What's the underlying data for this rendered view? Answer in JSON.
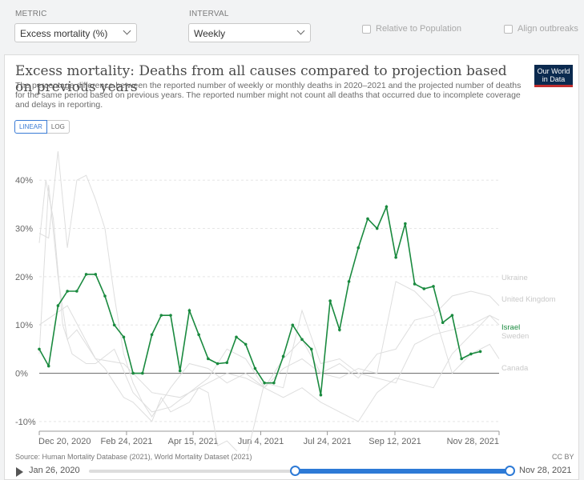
{
  "controls": {
    "metric_label": "METRIC",
    "metric_value": "Excess mortality (%)",
    "interval_label": "INTERVAL",
    "interval_value": "Weekly",
    "relative_label": "Relative to Population",
    "align_label": "Align outbreaks"
  },
  "header": {
    "title": "Excess mortality: Deaths from all causes compared to projection based on previous years",
    "subtitle": "The percentage difference between the reported number of weekly or monthly deaths in 2020–2021 and the projected number of deaths for the same period based on previous years. The reported number might not count all deaths that occurred due to incomplete coverage and delays in reporting.",
    "logo_line1": "Our World",
    "logo_line2": "in Data",
    "scale_linear": "LINEAR",
    "scale_log": "LOG"
  },
  "footer": {
    "source": "Source: Human Mortality Database (2021), World Mortality Dataset (2021)",
    "license": "CC BY",
    "timeline_start": "Jan 26, 2020",
    "timeline_end": "Nov 28, 2021"
  },
  "colors": {
    "highlight": "#1a8a3f",
    "background_series": "#dedede",
    "axis": "#666666",
    "grid": "#e5e5e5"
  },
  "chart_data": {
    "type": "line",
    "ylim": [
      -12,
      46
    ],
    "y_ticks": [
      -10,
      0,
      10,
      20,
      30,
      40
    ],
    "y_tick_labels": [
      "-10%",
      "0%",
      "10%",
      "20%",
      "30%",
      "40%"
    ],
    "x_tick_labels": [
      "Dec 20, 2020",
      "Feb 24, 2021",
      "Apr 15, 2021",
      "Jun 4, 2021",
      "Jul 24, 2021",
      "Sep 12, 2021",
      "Nov 28, 2021"
    ],
    "x_tick_weeks": [
      0,
      9.3,
      16.4,
      23.6,
      30.7,
      37.9,
      49
    ],
    "x_range_weeks": [
      0,
      49
    ],
    "grid": true,
    "series": [
      {
        "name": "Israel",
        "highlight": true,
        "x": [
          0,
          1,
          2,
          3,
          4,
          5,
          6,
          7,
          8,
          9,
          10,
          11,
          12,
          13,
          14,
          15,
          16,
          17,
          18,
          19,
          20,
          21,
          22,
          23,
          24,
          25,
          26,
          27,
          28,
          29,
          30,
          31,
          32,
          33,
          34,
          35,
          36,
          37,
          38,
          39,
          40,
          41,
          42,
          43,
          44,
          45,
          46,
          47
        ],
        "values": [
          5,
          1.5,
          14,
          17,
          17,
          20.5,
          20.5,
          16,
          10,
          7.5,
          0,
          0,
          8,
          12,
          12,
          0.5,
          13,
          8,
          3,
          2,
          2.2,
          7.5,
          6,
          1,
          -2,
          -2,
          3.5,
          10,
          7,
          5,
          -4.5,
          15,
          9,
          19,
          26,
          32,
          30,
          34.5,
          24,
          31,
          18.5,
          17.5,
          18,
          10.5,
          12,
          3,
          4,
          4.5
        ]
      },
      {
        "name": "Ukraine",
        "highlight": false,
        "x": [
          0,
          3,
          6,
          9,
          12,
          15,
          18,
          20,
          22,
          24,
          26,
          28,
          30,
          32,
          34,
          36,
          38,
          40,
          42,
          44,
          46,
          48,
          49
        ],
        "values": [
          10,
          14,
          3,
          2,
          -4,
          -5,
          -2,
          0,
          -1,
          -3,
          3,
          7,
          0,
          2,
          -1,
          4,
          5,
          11,
          12,
          16,
          17,
          16,
          14
        ]
      },
      {
        "name": "United Kingdom",
        "highlight": false,
        "x": [
          0,
          0.7,
          1.5,
          2.5,
          3.5,
          5,
          6,
          8,
          10,
          12,
          14,
          16,
          18,
          20,
          22,
          24,
          26,
          28,
          30,
          32,
          34,
          36,
          38,
          40,
          42,
          44,
          46,
          48,
          49
        ],
        "values": [
          27,
          40,
          32,
          10,
          4,
          2,
          2,
          5,
          -4,
          -8,
          -7,
          -4,
          -1,
          5,
          3,
          -3,
          -5,
          -3,
          -6,
          -8,
          -10,
          -4,
          -1,
          -2,
          -3,
          4,
          8,
          12,
          10
        ]
      },
      {
        "name": "Sweden",
        "highlight": false,
        "x": [
          0,
          1,
          2,
          3,
          4,
          5,
          6,
          7,
          8,
          9,
          10,
          11,
          12,
          14,
          16,
          18,
          20,
          22,
          24,
          26,
          28,
          30,
          32,
          34,
          36,
          38,
          40,
          42,
          44,
          46,
          48,
          49
        ],
        "values": [
          29,
          28,
          46,
          26,
          40,
          41,
          36,
          30,
          16,
          4,
          -2,
          -6,
          -9,
          -3,
          2,
          1,
          -2,
          0,
          -3,
          1,
          3,
          0,
          -1,
          1,
          0,
          19,
          17,
          13,
          0,
          4,
          6,
          3
        ]
      },
      {
        "name": "Canada",
        "highlight": false,
        "x": [
          0,
          1,
          2,
          3,
          4,
          5,
          6,
          7,
          8,
          9,
          10,
          11,
          12,
          13,
          14,
          16,
          17,
          18,
          19,
          20,
          22,
          24,
          26,
          28,
          30,
          32,
          34,
          36,
          38,
          40,
          42,
          44,
          46,
          48,
          49
        ],
        "values": [
          4,
          39,
          20,
          7,
          9,
          6,
          3,
          1,
          -2,
          -5,
          -6,
          -8,
          -10,
          -5,
          -8,
          -6,
          -3,
          -4,
          -15,
          -14,
          -18,
          -2,
          -3,
          13,
          2,
          3,
          0,
          -1,
          -2,
          6,
          8,
          9,
          10,
          12,
          11
        ]
      }
    ],
    "label_order": [
      "Ukraine",
      "United Kingdom",
      "Israel",
      "Sweden",
      "Canada"
    ]
  }
}
